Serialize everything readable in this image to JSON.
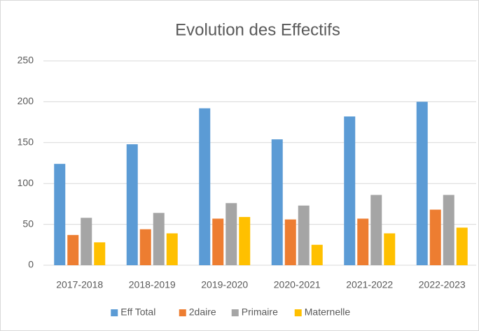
{
  "chart_data": {
    "type": "bar",
    "title": "Evolution des Effectifs",
    "categories": [
      "2017-2018",
      "2018-2019",
      "2019-2020",
      "2020-2021",
      "2021-2022",
      "2022-2023"
    ],
    "series": [
      {
        "name": "Eff Total",
        "color": "#5b9bd5",
        "values": [
          124,
          148,
          192,
          154,
          182,
          200
        ]
      },
      {
        "name": "2daire",
        "color": "#ed7d31",
        "values": [
          37,
          44,
          57,
          56,
          57,
          68
        ]
      },
      {
        "name": "Primaire",
        "color": "#a5a5a5",
        "values": [
          58,
          64,
          76,
          73,
          86,
          86
        ]
      },
      {
        "name": "Maternelle",
        "color": "#ffc000",
        "values": [
          28,
          39,
          59,
          25,
          39,
          46
        ]
      }
    ],
    "ylim": [
      0,
      250
    ],
    "yticks": [
      0,
      50,
      100,
      150,
      200,
      250
    ],
    "grid": true,
    "legend": "bottom"
  }
}
